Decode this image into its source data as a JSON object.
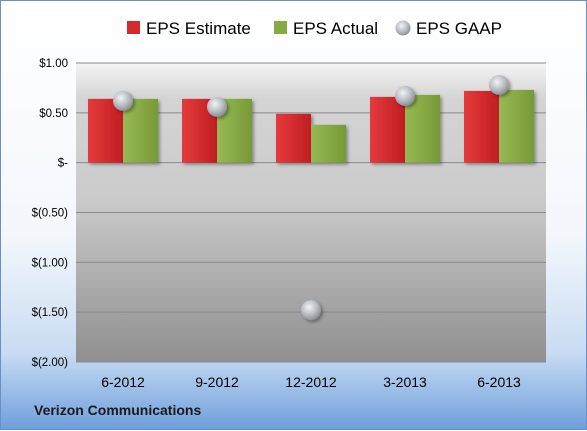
{
  "company": "Verizon Communications",
  "colors": {
    "estimate": "#d42a2c",
    "actual": "#87aa44",
    "gaap": "#b8bcc2"
  },
  "chart_data": {
    "type": "bar",
    "categories": [
      "6-2012",
      "9-2012",
      "12-2012",
      "3-2013",
      "6-2013"
    ],
    "series": [
      {
        "name": "EPS Estimate",
        "kind": "bar",
        "values": [
          0.64,
          0.64,
          0.49,
          0.66,
          0.72
        ]
      },
      {
        "name": "EPS Actual",
        "kind": "bar",
        "values": [
          0.64,
          0.64,
          0.38,
          0.68,
          0.73
        ]
      },
      {
        "name": "EPS GAAP",
        "kind": "marker",
        "values": [
          0.62,
          0.56,
          -1.48,
          0.67,
          0.78
        ]
      }
    ],
    "ylim": [
      -2.0,
      1.0
    ],
    "yticks": [
      1.0,
      0.5,
      0,
      -0.5,
      -1.0,
      -1.5,
      -2.0
    ],
    "ytick_labels": [
      "$1.00",
      "$0.50",
      "$-",
      "$(0.50)",
      "$(1.00)",
      "$(1.50)",
      "$(2.00)"
    ],
    "legend": "top",
    "grid": true,
    "title": "",
    "xlabel": "",
    "ylabel": ""
  }
}
